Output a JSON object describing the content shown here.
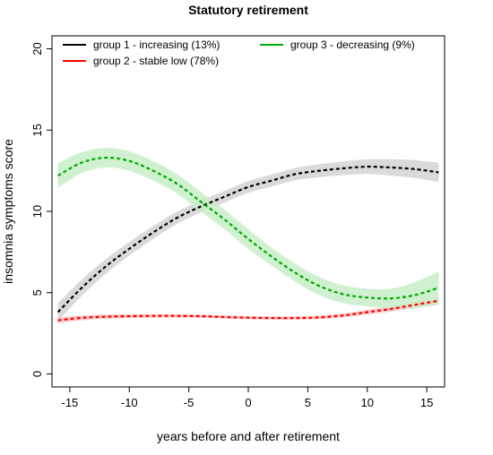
{
  "chart_data": {
    "type": "line",
    "title": "Statutory retirement",
    "xlabel": "years before and after retirement",
    "ylabel": "insomnia symptoms score",
    "xlim": [
      -16.5,
      16.5
    ],
    "ylim": [
      -0.8,
      20.8
    ],
    "xticks": [
      -15,
      -10,
      -5,
      0,
      5,
      10,
      15
    ],
    "yticks": [
      0,
      5,
      10,
      15,
      20
    ],
    "grid": false,
    "legend_position": "top",
    "series": [
      {
        "name": "group 1 - increasing (13%)",
        "color": "#000000",
        "band_color": "#d3d3d3",
        "x": [
          -16,
          -14,
          -12,
          -10,
          -8,
          -6,
          -4,
          -2,
          0,
          2,
          4,
          6,
          8,
          10,
          12,
          14,
          16
        ],
        "y": [
          3.8,
          5.3,
          6.6,
          7.7,
          8.7,
          9.6,
          10.3,
          10.9,
          11.5,
          11.9,
          12.3,
          12.5,
          12.65,
          12.75,
          12.7,
          12.6,
          12.4
        ],
        "ci_half_width": [
          0.55,
          0.5,
          0.45,
          0.42,
          0.4,
          0.38,
          0.37,
          0.36,
          0.36,
          0.37,
          0.38,
          0.4,
          0.42,
          0.45,
          0.5,
          0.55,
          0.6
        ]
      },
      {
        "name": "group 2 - stable low  (78%)",
        "color": "#ff0000",
        "band_color": "#f8c4c4",
        "x": [
          -16,
          -14,
          -12,
          -10,
          -8,
          -6,
          -4,
          -2,
          0,
          2,
          4,
          6,
          8,
          10,
          12,
          14,
          16
        ],
        "y": [
          3.3,
          3.45,
          3.52,
          3.55,
          3.57,
          3.57,
          3.55,
          3.5,
          3.46,
          3.44,
          3.44,
          3.48,
          3.6,
          3.8,
          4.0,
          4.25,
          4.5
        ],
        "ci_half_width": [
          0.18,
          0.15,
          0.13,
          0.12,
          0.11,
          0.1,
          0.1,
          0.1,
          0.1,
          0.1,
          0.1,
          0.11,
          0.12,
          0.14,
          0.17,
          0.2,
          0.25
        ]
      },
      {
        "name": "group 3 - decreasing (9%)",
        "color": "#00aa00",
        "band_color": "#c8efc8",
        "x": [
          -16,
          -14,
          -12,
          -10,
          -8,
          -6,
          -4,
          -2,
          0,
          2,
          4,
          6,
          8,
          10,
          12,
          14,
          16
        ],
        "y": [
          12.2,
          13.0,
          13.3,
          13.1,
          12.5,
          11.7,
          10.6,
          9.5,
          8.3,
          7.2,
          6.2,
          5.4,
          4.9,
          4.7,
          4.65,
          4.85,
          5.3
        ],
        "ci_half_width": [
          0.75,
          0.65,
          0.6,
          0.6,
          0.6,
          0.6,
          0.6,
          0.6,
          0.6,
          0.55,
          0.55,
          0.55,
          0.55,
          0.55,
          0.6,
          0.8,
          1.0
        ]
      }
    ]
  }
}
